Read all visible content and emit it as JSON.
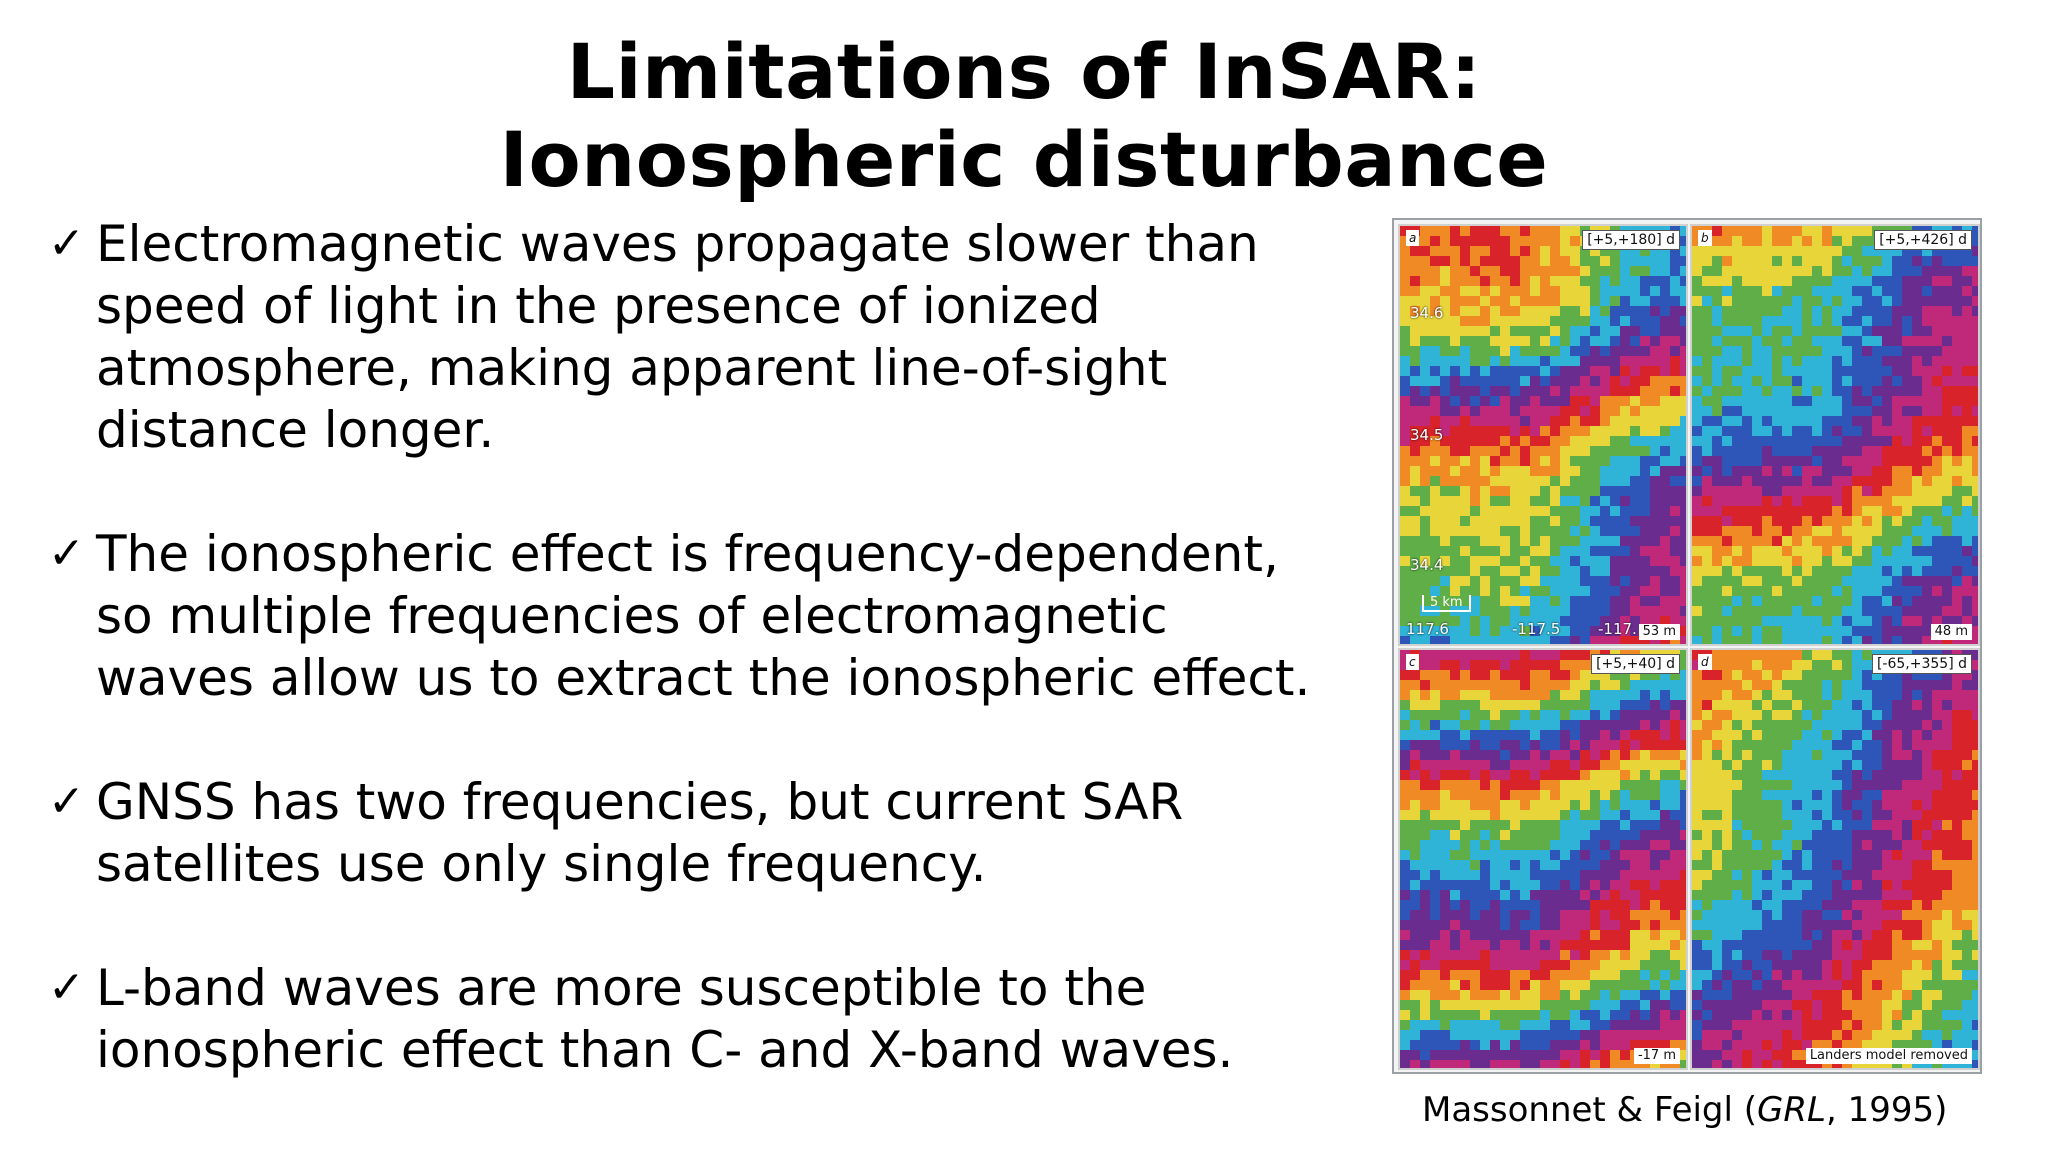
{
  "title": {
    "line1": "Limitations of InSAR:",
    "line2": "Ionospheric disturbance"
  },
  "bullets": [
    {
      "check": "✓",
      "lines": [
        "Electromagnetic waves propagate slower than",
        "speed of light in the presence of ionized",
        "atmosphere, making apparent line-of-sight",
        "distance longer."
      ]
    },
    {
      "check": "✓",
      "lines": [
        "The ionospheric effect is frequency-dependent,",
        "so multiple frequencies of electromagnetic",
        "waves allow us to extract the ionospheric effect."
      ]
    },
    {
      "check": "✓",
      "lines": [
        "GNSS has two frequencies, but current SAR",
        "satellites use only single frequency."
      ]
    },
    {
      "check": "✓",
      "lines": [
        "L-band waves are more susceptible to the",
        "ionospheric effect than C- and X-band waves."
      ]
    }
  ],
  "figure": {
    "panels": [
      {
        "letter": "a",
        "tag": "[+5,+180] d",
        "foot": "53 m",
        "lats": [
          "34.6",
          "34.5",
          "34.4"
        ],
        "lons": [
          "117.6",
          "-117.5",
          "-117."
        ],
        "scale": "5 km"
      },
      {
        "letter": "b",
        "tag": "[+5,+426] d",
        "foot": "48 m"
      },
      {
        "letter": "c",
        "tag": "[+5,+40] d",
        "foot": "-17 m"
      },
      {
        "letter": "d",
        "tag": "[-65,+355] d",
        "foot": "Landers model removed"
      }
    ],
    "colors": {
      "red": "#d8232a",
      "orange": "#f08a24",
      "yellow": "#e7d53a",
      "green": "#5fae47",
      "cyan": "#2fb3d6",
      "blue": "#2d56b8",
      "purple": "#6a2c8f",
      "magenta": "#c0297a"
    }
  },
  "caption": {
    "authors": "Massonnet & Feigl (",
    "journal": "GRL",
    "year": ", 1995)"
  }
}
